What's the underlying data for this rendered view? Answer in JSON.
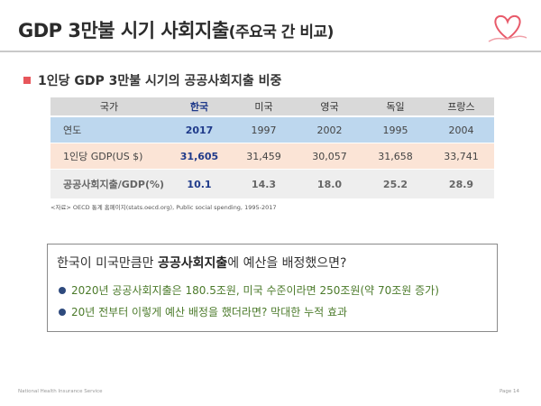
{
  "slide": {
    "title_main": "GDP 3만불 시기 사회지출",
    "title_sub": "(주요국 간 비교)",
    "section_heading": "1인당 GDP 3만불 시기의 공공사회지출 비중",
    "table": {
      "header": [
        "국가",
        "한국",
        "미국",
        "영국",
        "독일",
        "프랑스"
      ],
      "rows": [
        {
          "label": "연도",
          "values": [
            "2017",
            "1997",
            "2002",
            "1995",
            "2004"
          ]
        },
        {
          "label": "1인당 GDP(US $)",
          "values": [
            "31,605",
            "31,459",
            "30,057",
            "31,658",
            "33,741"
          ]
        },
        {
          "label": "공공사회지출/GDP(%)",
          "values": [
            "10.1",
            "14.3",
            "18.0",
            "25.2",
            "28.9"
          ]
        }
      ]
    },
    "source": "<자료> OECD 통계 홈페이지(stats.oecd.org),  Public social spending,  1995-2017",
    "callout": {
      "question_pre": "한국이 미국만큼만 ",
      "question_bold": "공공사회지출",
      "question_post": "에 예산을 배정했으면?",
      "points": [
        "2020년 공공사회지출은 180.5조원, 미국 수준이라면 250조원(약 70조원 증가)",
        "20년 전부터 이렇게 예산 배정을 했더라면? 막대한 누적 효과"
      ]
    },
    "footer_left": "National  Health  Insurance  Service",
    "footer_right": "Page 14"
  },
  "colors": {
    "accent_bullet": "#e7565b",
    "korea_text": "#1f3a8a",
    "header_row": "#d9d9d9",
    "year_row": "#bdd7ee",
    "gdp_row": "#fbe4d6",
    "ratio_row": "#eeeeee",
    "point_text": "#4b7a2a",
    "point_dot": "#2e4a7d"
  },
  "icons": {
    "logo": "ribbon-heart-logo-icon",
    "section_bullet": "square-bullet-icon",
    "point_bullet": "circle-bullet-icon"
  }
}
